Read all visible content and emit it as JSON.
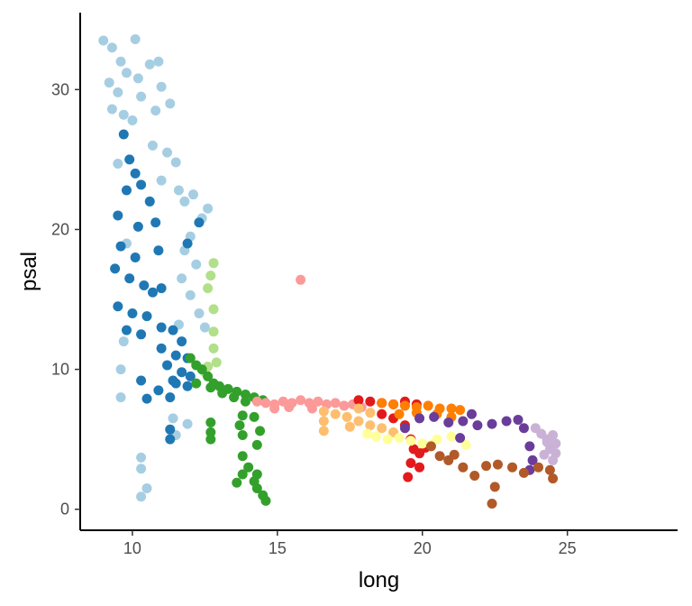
{
  "chart_data": {
    "type": "scatter",
    "title": "",
    "xlabel": "long",
    "ylabel": "psal",
    "xlim": [
      8.2,
      28.8
    ],
    "ylim": [
      -1.5,
      35.5
    ],
    "x_ticks": [
      10,
      15,
      20,
      25
    ],
    "y_ticks": [
      0,
      10,
      20,
      30
    ],
    "x_tick_labels": [
      "10",
      "15",
      "20",
      "25"
    ],
    "y_tick_labels": [
      "0",
      "10",
      "20",
      "30"
    ],
    "grid": false,
    "legend": "none",
    "series": [
      {
        "color": "#a6cee3",
        "points": [
          [
            9.0,
            33.5
          ],
          [
            9.3,
            33.0
          ],
          [
            9.6,
            32.0
          ],
          [
            9.8,
            31.2
          ],
          [
            10.1,
            33.6
          ],
          [
            10.2,
            30.8
          ],
          [
            9.2,
            30.5
          ],
          [
            9.5,
            29.8
          ],
          [
            9.3,
            28.6
          ],
          [
            9.7,
            28.2
          ],
          [
            10.0,
            27.8
          ],
          [
            10.3,
            29.5
          ],
          [
            10.6,
            31.8
          ],
          [
            10.9,
            32.0
          ],
          [
            11.0,
            30.2
          ],
          [
            11.3,
            29.0
          ],
          [
            10.8,
            28.5
          ],
          [
            10.7,
            26.0
          ],
          [
            11.2,
            25.5
          ],
          [
            11.5,
            24.8
          ],
          [
            11.0,
            23.5
          ],
          [
            11.6,
            22.8
          ],
          [
            11.8,
            22.0
          ],
          [
            12.1,
            22.5
          ],
          [
            12.4,
            20.8
          ],
          [
            12.6,
            21.5
          ],
          [
            12.0,
            19.5
          ],
          [
            11.8,
            18.5
          ],
          [
            12.2,
            17.5
          ],
          [
            11.7,
            16.5
          ],
          [
            12.0,
            15.3
          ],
          [
            12.3,
            14.0
          ],
          [
            11.6,
            13.2
          ],
          [
            12.5,
            13.0
          ],
          [
            9.5,
            24.7
          ],
          [
            9.8,
            19.0
          ],
          [
            9.7,
            12.0
          ],
          [
            9.6,
            10.0
          ],
          [
            9.6,
            8.0
          ],
          [
            10.3,
            3.7
          ],
          [
            10.3,
            2.9
          ],
          [
            10.5,
            1.5
          ],
          [
            10.3,
            0.9
          ],
          [
            11.4,
            6.5
          ],
          [
            11.9,
            6.1
          ],
          [
            11.5,
            5.3
          ]
        ]
      },
      {
        "color": "#1f78b4",
        "points": [
          [
            9.7,
            26.8
          ],
          [
            9.9,
            25.0
          ],
          [
            10.1,
            24.0
          ],
          [
            9.8,
            22.8
          ],
          [
            10.3,
            23.2
          ],
          [
            10.6,
            22.0
          ],
          [
            9.5,
            21.0
          ],
          [
            10.2,
            20.2
          ],
          [
            10.8,
            20.5
          ],
          [
            9.6,
            18.8
          ],
          [
            10.1,
            18.0
          ],
          [
            10.9,
            18.5
          ],
          [
            9.4,
            17.2
          ],
          [
            9.9,
            16.5
          ],
          [
            10.4,
            16.0
          ],
          [
            10.7,
            15.5
          ],
          [
            11.0,
            15.8
          ],
          [
            9.5,
            14.5
          ],
          [
            10.0,
            14.0
          ],
          [
            10.5,
            13.8
          ],
          [
            11.0,
            13.0
          ],
          [
            9.8,
            12.8
          ],
          [
            10.3,
            12.5
          ],
          [
            11.4,
            12.8
          ],
          [
            11.7,
            12.0
          ],
          [
            11.0,
            11.5
          ],
          [
            11.5,
            11.0
          ],
          [
            11.9,
            10.8
          ],
          [
            11.2,
            10.3
          ],
          [
            11.7,
            9.8
          ],
          [
            12.0,
            9.5
          ],
          [
            11.4,
            9.2
          ],
          [
            11.9,
            8.8
          ],
          [
            10.3,
            9.2
          ],
          [
            10.9,
            8.5
          ],
          [
            11.5,
            9.0
          ],
          [
            10.5,
            7.9
          ],
          [
            11.3,
            8.0
          ],
          [
            11.3,
            5.7
          ],
          [
            11.3,
            5.0
          ],
          [
            12.3,
            20.5
          ],
          [
            11.9,
            19.0
          ]
        ]
      },
      {
        "color": "#b2df8a",
        "points": [
          [
            12.8,
            17.6
          ],
          [
            12.7,
            16.7
          ],
          [
            12.6,
            15.8
          ],
          [
            12.8,
            14.3
          ],
          [
            12.8,
            12.7
          ],
          [
            12.8,
            11.5
          ],
          [
            12.9,
            10.5
          ],
          [
            12.6,
            10.2
          ],
          [
            12.5,
            9.8
          ]
        ]
      },
      {
        "color": "#33a02c",
        "points": [
          [
            12.0,
            10.8
          ],
          [
            12.2,
            10.3
          ],
          [
            12.4,
            10.0
          ],
          [
            12.6,
            9.5
          ],
          [
            12.8,
            9.0
          ],
          [
            13.0,
            8.8
          ],
          [
            13.3,
            8.6
          ],
          [
            13.6,
            8.4
          ],
          [
            13.9,
            8.2
          ],
          [
            14.2,
            8.0
          ],
          [
            14.5,
            7.8
          ],
          [
            12.2,
            9.0
          ],
          [
            12.7,
            8.7
          ],
          [
            13.1,
            8.3
          ],
          [
            13.5,
            8.0
          ],
          [
            13.9,
            7.7
          ],
          [
            12.7,
            6.2
          ],
          [
            12.7,
            5.5
          ],
          [
            12.7,
            5.0
          ],
          [
            13.8,
            6.7
          ],
          [
            13.7,
            6.0
          ],
          [
            14.2,
            6.6
          ],
          [
            14.4,
            5.6
          ],
          [
            14.3,
            4.6
          ],
          [
            13.8,
            5.3
          ],
          [
            13.8,
            3.8
          ],
          [
            13.8,
            2.5
          ],
          [
            14.2,
            2.0
          ],
          [
            14.3,
            2.5
          ],
          [
            14.5,
            1.0
          ],
          [
            14.6,
            0.6
          ],
          [
            13.6,
            1.9
          ],
          [
            14.0,
            3.0
          ],
          [
            14.3,
            1.5
          ]
        ]
      },
      {
        "color": "#fb9a99",
        "points": [
          [
            14.3,
            7.7
          ],
          [
            14.6,
            7.6
          ],
          [
            14.9,
            7.5
          ],
          [
            15.2,
            7.7
          ],
          [
            15.5,
            7.6
          ],
          [
            15.8,
            7.8
          ],
          [
            16.1,
            7.6
          ],
          [
            16.4,
            7.7
          ],
          [
            16.7,
            7.5
          ],
          [
            17.0,
            7.6
          ],
          [
            17.3,
            7.4
          ],
          [
            17.6,
            7.5
          ],
          [
            17.9,
            7.3
          ],
          [
            14.9,
            7.2
          ],
          [
            15.4,
            7.3
          ],
          [
            16.2,
            7.2
          ],
          [
            15.8,
            16.4
          ]
        ]
      },
      {
        "color": "#e31a1c",
        "points": [
          [
            17.8,
            7.8
          ],
          [
            18.2,
            7.7
          ],
          [
            18.6,
            7.6
          ],
          [
            19.0,
            7.5
          ],
          [
            19.4,
            7.7
          ],
          [
            19.8,
            7.5
          ],
          [
            18.6,
            6.8
          ],
          [
            19.0,
            6.5
          ],
          [
            19.4,
            6.0
          ],
          [
            19.6,
            5.0
          ],
          [
            19.7,
            4.3
          ],
          [
            19.6,
            3.3
          ],
          [
            19.5,
            2.3
          ],
          [
            19.9,
            3.0
          ],
          [
            20.1,
            4.4
          ],
          [
            19.9,
            4.0
          ]
        ]
      },
      {
        "color": "#fdbf6f",
        "points": [
          [
            16.6,
            7.0
          ],
          [
            17.0,
            6.8
          ],
          [
            17.4,
            6.6
          ],
          [
            17.8,
            6.3
          ],
          [
            18.2,
            6.0
          ],
          [
            18.6,
            5.8
          ],
          [
            19.0,
            5.5
          ],
          [
            16.6,
            6.3
          ],
          [
            17.5,
            5.9
          ],
          [
            16.6,
            5.6
          ],
          [
            18.2,
            6.9
          ],
          [
            17.8,
            7.2
          ]
        ]
      },
      {
        "color": "#ff7f00",
        "points": [
          [
            18.6,
            7.6
          ],
          [
            19.0,
            7.5
          ],
          [
            19.4,
            7.4
          ],
          [
            19.8,
            7.3
          ],
          [
            20.2,
            7.4
          ],
          [
            20.6,
            7.2
          ],
          [
            21.0,
            7.2
          ],
          [
            21.3,
            7.1
          ],
          [
            19.2,
            6.8
          ],
          [
            19.8,
            6.9
          ],
          [
            20.5,
            6.8
          ],
          [
            21.0,
            6.6
          ]
        ]
      },
      {
        "color": "#ffff99",
        "points": [
          [
            18.1,
            5.4
          ],
          [
            18.4,
            5.2
          ],
          [
            18.8,
            5.0
          ],
          [
            19.2,
            5.1
          ],
          [
            19.6,
            4.9
          ],
          [
            20.0,
            4.7
          ],
          [
            20.5,
            5.0
          ],
          [
            21.0,
            5.2
          ],
          [
            21.5,
            4.6
          ],
          [
            20.3,
            4.6
          ]
        ]
      },
      {
        "color": "#6a3d9a",
        "points": [
          [
            19.9,
            6.5
          ],
          [
            20.4,
            6.6
          ],
          [
            20.9,
            6.2
          ],
          [
            21.4,
            6.3
          ],
          [
            21.9,
            6.0
          ],
          [
            22.4,
            6.1
          ],
          [
            22.9,
            6.3
          ],
          [
            23.3,
            6.4
          ],
          [
            23.5,
            5.8
          ],
          [
            19.4,
            5.8
          ],
          [
            21.3,
            5.1
          ],
          [
            21.7,
            6.8
          ],
          [
            23.7,
            4.5
          ],
          [
            23.8,
            3.5
          ],
          [
            23.7,
            2.8
          ]
        ]
      },
      {
        "color": "#b15928",
        "points": [
          [
            20.3,
            4.5
          ],
          [
            20.6,
            3.8
          ],
          [
            20.9,
            3.5
          ],
          [
            21.4,
            3.0
          ],
          [
            21.8,
            2.4
          ],
          [
            22.2,
            3.1
          ],
          [
            22.6,
            3.2
          ],
          [
            23.1,
            3.0
          ],
          [
            23.5,
            2.6
          ],
          [
            24.0,
            3.0
          ],
          [
            24.4,
            2.8
          ],
          [
            24.5,
            2.2
          ],
          [
            22.5,
            1.6
          ],
          [
            22.4,
            0.4
          ],
          [
            21.1,
            3.9
          ]
        ]
      },
      {
        "color": "#cab2d6",
        "points": [
          [
            23.9,
            5.8
          ],
          [
            24.1,
            5.4
          ],
          [
            24.3,
            5.0
          ],
          [
            24.5,
            5.3
          ],
          [
            24.6,
            4.7
          ],
          [
            24.4,
            4.3
          ],
          [
            24.2,
            3.9
          ],
          [
            24.5,
            3.5
          ],
          [
            24.3,
            4.8
          ],
          [
            24.6,
            4.0
          ]
        ]
      }
    ]
  }
}
